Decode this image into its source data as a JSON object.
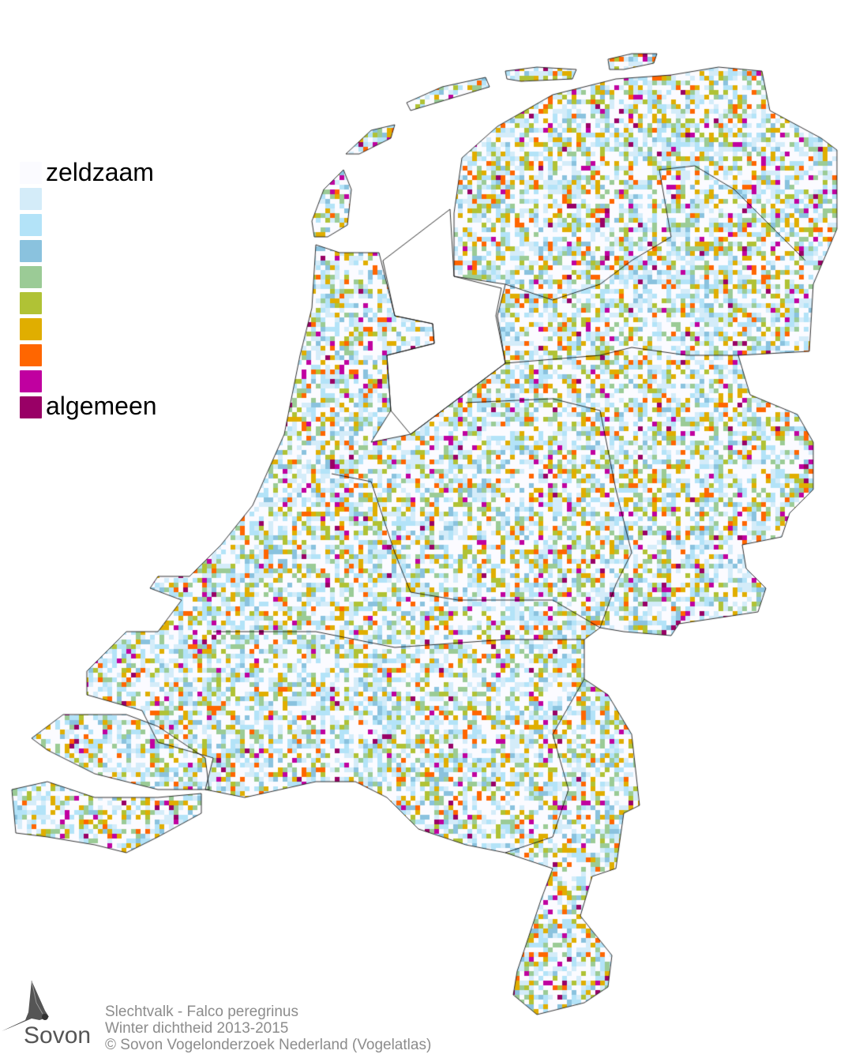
{
  "legend": {
    "top_label": "zeldzaam",
    "bottom_label": "algemeen",
    "colors": [
      "#fbfbff",
      "#d4ecf9",
      "#b3e3f8",
      "#8ac2de",
      "#9bcb96",
      "#b0c235",
      "#e0ae00",
      "#ff6600",
      "#c000a0",
      "#990066"
    ]
  },
  "footer": {
    "species": "Slechtvalk - Falco peregrinus",
    "subtitle": "Winter dichtheid 2013-2015",
    "copyright": "© Sovon Vogelonderzoek Nederland (Vogelatlas)"
  },
  "logo": {
    "text": "Sovon",
    "icon": "swallow-icon"
  }
}
